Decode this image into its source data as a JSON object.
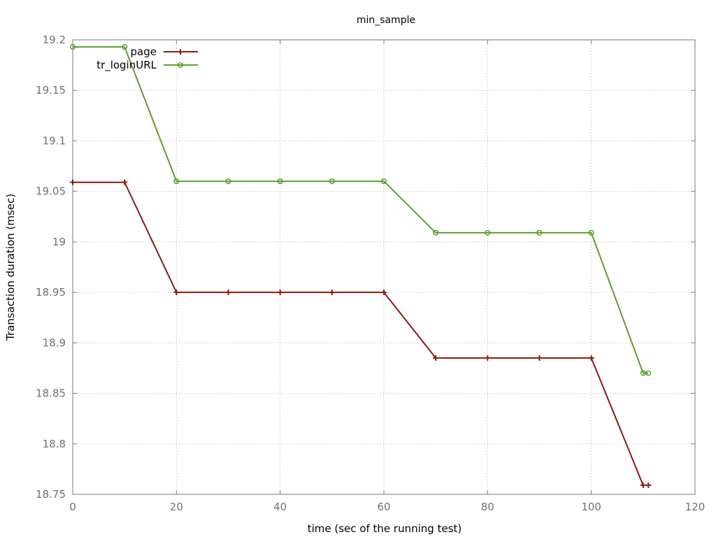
{
  "chart_data": {
    "type": "line",
    "title": "min_sample",
    "xlabel": "time (sec of the running test)",
    "ylabel": "Transaction duration (msec)",
    "xlim": [
      0,
      120
    ],
    "ylim": [
      18.75,
      19.2
    ],
    "xticks": [
      0,
      20,
      40,
      60,
      80,
      100,
      120
    ],
    "xtick_labels": [
      "0",
      "20",
      "40",
      "60",
      "80",
      "100",
      "120"
    ],
    "yticks": [
      18.75,
      18.8,
      18.85,
      18.9,
      18.95,
      19.0,
      19.05,
      19.1,
      19.15,
      19.2
    ],
    "ytick_labels": [
      "18.75",
      "18.8",
      "18.85",
      "18.9",
      "18.95",
      "19",
      "19.05",
      "19.1",
      "19.15",
      "19.2"
    ],
    "grid": true,
    "legend_position": "top-left",
    "series": [
      {
        "name": "page",
        "color": "#8b1a10",
        "marker": "plus",
        "x": [
          0,
          10,
          20,
          30,
          40,
          50,
          60,
          70,
          80,
          90,
          100,
          110,
          111
        ],
        "y": [
          19.059,
          19.059,
          18.95,
          18.95,
          18.95,
          18.95,
          18.95,
          18.885,
          18.885,
          18.885,
          18.885,
          18.759,
          18.759
        ]
      },
      {
        "name": "tr_loginURL",
        "color": "#5a9e2f",
        "marker": "circle",
        "x": [
          0,
          10,
          20,
          30,
          40,
          50,
          60,
          70,
          80,
          90,
          100,
          110,
          111
        ],
        "y": [
          19.193,
          19.193,
          19.06,
          19.06,
          19.06,
          19.06,
          19.06,
          19.009,
          19.009,
          19.009,
          19.009,
          18.87,
          18.87
        ]
      }
    ]
  }
}
